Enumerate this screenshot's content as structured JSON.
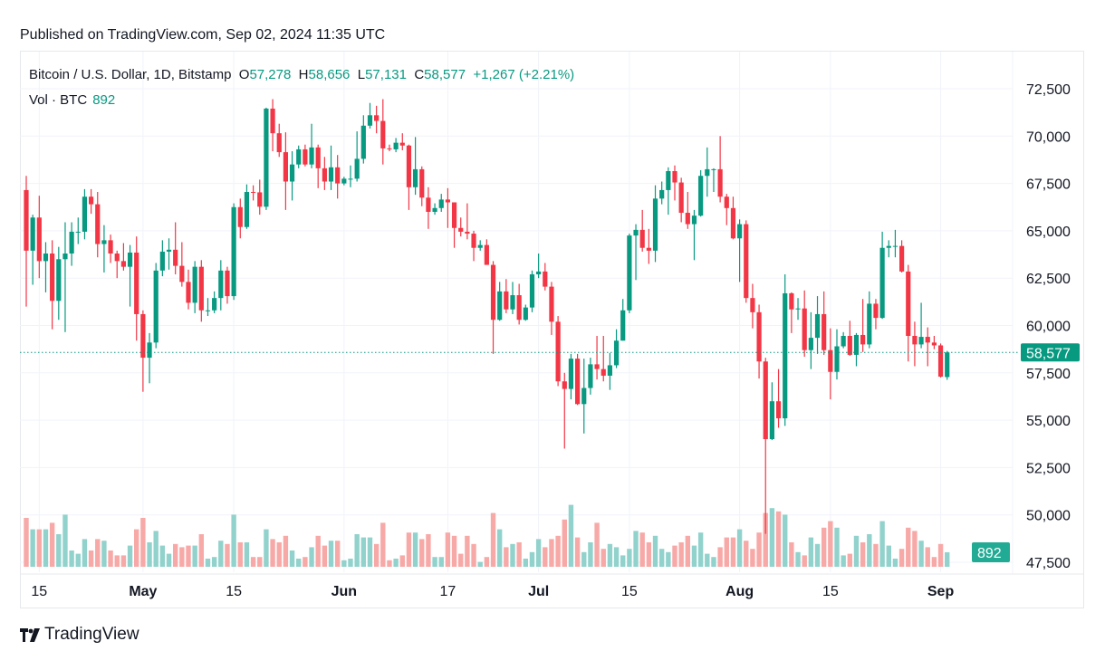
{
  "header": {
    "published": "Published on TradingView.com, Sep 02, 2024 11:35 UTC"
  },
  "legend": {
    "symbol": "Bitcoin / U.S. Dollar, 1D, Bitstamp",
    "o_label": "O",
    "o": "57,278",
    "h_label": "H",
    "h": "58,656",
    "l_label": "L",
    "l": "57,131",
    "c_label": "C",
    "c": "58,577",
    "change": "+1,267 (+2.21%)",
    "vol_label": "Vol · BTC",
    "vol": "892"
  },
  "footer": {
    "brand": "TradingView"
  },
  "colors": {
    "up": "#089981",
    "down": "#f23645",
    "vol_up": "#92d2cc",
    "vol_down": "#f7a9a7",
    "last_price": "#089981",
    "vol_badge": "#22ab94"
  },
  "chart_data": {
    "type": "candlestick",
    "title": "Bitcoin / U.S. Dollar, 1D, Bitstamp",
    "ylim": [
      47500,
      72500
    ],
    "y_ticks": [
      "72,500",
      "70,000",
      "67,500",
      "65,000",
      "62,500",
      "60,000",
      "57,500",
      "55,000",
      "52,500",
      "50,000",
      "47,500"
    ],
    "y_tick_values": [
      72500,
      70000,
      67500,
      65000,
      62500,
      60000,
      57500,
      55000,
      52500,
      50000,
      47500
    ],
    "x_ticks": [
      {
        "date": "2024-04-15",
        "label": "15",
        "month": false
      },
      {
        "date": "2024-05-01",
        "label": "May",
        "month": true
      },
      {
        "date": "2024-05-15",
        "label": "15",
        "month": false
      },
      {
        "date": "2024-06-01",
        "label": "Jun",
        "month": true
      },
      {
        "date": "2024-06-17",
        "label": "17",
        "month": false
      },
      {
        "date": "2024-07-01",
        "label": "Jul",
        "month": true
      },
      {
        "date": "2024-07-15",
        "label": "15",
        "month": false
      },
      {
        "date": "2024-08-01",
        "label": "Aug",
        "month": true
      },
      {
        "date": "2024-08-15",
        "label": "15",
        "month": false
      },
      {
        "date": "2024-09-01",
        "label": "Sep",
        "month": true
      }
    ],
    "last_price": 58577,
    "last_price_label": "58,577",
    "last_volume": 892,
    "last_volume_label": "892",
    "grid": true,
    "columns": [
      "date",
      "open",
      "high",
      "low",
      "close",
      "volume"
    ],
    "candles": [
      [
        "2024-04-13",
        67150,
        67900,
        61000,
        63950,
        3000
      ],
      [
        "2024-04-14",
        63950,
        65850,
        62150,
        65700,
        2300
      ],
      [
        "2024-04-15",
        65700,
        66850,
        62500,
        63400,
        2300
      ],
      [
        "2024-04-16",
        63400,
        64400,
        61750,
        63800,
        2300
      ],
      [
        "2024-04-17",
        63800,
        64500,
        59800,
        61300,
        2700
      ],
      [
        "2024-04-18",
        61300,
        64150,
        60300,
        63500,
        2000
      ],
      [
        "2024-04-19",
        63500,
        65450,
        59650,
        63800,
        3200
      ],
      [
        "2024-04-20",
        63800,
        65450,
        63150,
        64950,
        1000
      ],
      [
        "2024-04-21",
        64950,
        65700,
        64300,
        64950,
        800
      ],
      [
        "2024-04-22",
        64950,
        67200,
        64550,
        66800,
        1700
      ],
      [
        "2024-04-23",
        66800,
        67200,
        65900,
        66400,
        1000
      ],
      [
        "2024-04-24",
        66400,
        67050,
        63600,
        64300,
        1700
      ],
      [
        "2024-04-25",
        64300,
        65300,
        62800,
        64500,
        1600
      ],
      [
        "2024-04-26",
        64500,
        64800,
        63300,
        63800,
        1000
      ],
      [
        "2024-04-27",
        63800,
        63950,
        62500,
        63400,
        700
      ],
      [
        "2024-04-28",
        63400,
        64350,
        62900,
        63100,
        700
      ],
      [
        "2024-04-29",
        63100,
        64250,
        61000,
        63850,
        1300
      ],
      [
        "2024-04-30",
        63850,
        64700,
        59200,
        60600,
        2300
      ],
      [
        "2024-05-01",
        60600,
        60800,
        56500,
        58300,
        3000
      ],
      [
        "2024-05-02",
        58300,
        59600,
        56950,
        59100,
        1500
      ],
      [
        "2024-05-03",
        59100,
        63300,
        58800,
        62900,
        2200
      ],
      [
        "2024-05-04",
        62900,
        64500,
        62600,
        63900,
        1300
      ],
      [
        "2024-05-05",
        63900,
        64600,
        62950,
        64000,
        800
      ],
      [
        "2024-05-06",
        64000,
        65450,
        62700,
        63150,
        1400
      ],
      [
        "2024-05-07",
        63150,
        64400,
        62050,
        62300,
        1200
      ],
      [
        "2024-05-08",
        62300,
        62950,
        60850,
        61200,
        1300
      ],
      [
        "2024-05-09",
        61200,
        63400,
        60650,
        63100,
        1300
      ],
      [
        "2024-05-10",
        63100,
        63450,
        60200,
        60800,
        2000
      ],
      [
        "2024-05-11",
        60800,
        61450,
        60500,
        60800,
        500
      ],
      [
        "2024-05-12",
        60800,
        61800,
        60650,
        61450,
        600
      ],
      [
        "2024-05-13",
        61450,
        63450,
        60800,
        62900,
        1600
      ],
      [
        "2024-05-14",
        62900,
        63100,
        61150,
        61550,
        1400
      ],
      [
        "2024-05-15",
        61550,
        66450,
        61350,
        66250,
        3200
      ],
      [
        "2024-05-16",
        66250,
        66700,
        64600,
        65200,
        1500
      ],
      [
        "2024-05-17",
        65200,
        67450,
        65100,
        67050,
        1500
      ],
      [
        "2024-05-18",
        67050,
        67400,
        66600,
        67030,
        600
      ],
      [
        "2024-05-19",
        67030,
        67700,
        65850,
        66270,
        600
      ],
      [
        "2024-05-20",
        66270,
        71500,
        66100,
        71450,
        2300
      ],
      [
        "2024-05-21",
        71450,
        71950,
        69200,
        70150,
        1700
      ],
      [
        "2024-05-22",
        70150,
        70650,
        68900,
        69150,
        1500
      ],
      [
        "2024-05-23",
        69150,
        70200,
        66100,
        67600,
        1900
      ],
      [
        "2024-05-24",
        67600,
        69200,
        66600,
        68500,
        1000
      ],
      [
        "2024-05-25",
        68500,
        69500,
        68300,
        69300,
        500
      ],
      [
        "2024-05-26",
        69300,
        69550,
        68400,
        68500,
        600
      ],
      [
        "2024-05-27",
        68500,
        70650,
        68300,
        69400,
        1200
      ],
      [
        "2024-05-28",
        69400,
        69550,
        67250,
        68300,
        1900
      ],
      [
        "2024-05-29",
        68300,
        68900,
        67150,
        67600,
        1300
      ],
      [
        "2024-05-30",
        67600,
        69500,
        67150,
        68350,
        1600
      ],
      [
        "2024-05-31",
        68350,
        69000,
        66700,
        67500,
        1600
      ],
      [
        "2024-06-01",
        67500,
        67850,
        67400,
        67750,
        400
      ],
      [
        "2024-06-02",
        67750,
        68450,
        67300,
        67750,
        500
      ],
      [
        "2024-06-03",
        67750,
        70250,
        67600,
        68800,
        2000
      ],
      [
        "2024-06-04",
        68800,
        71100,
        68550,
        70550,
        1800
      ],
      [
        "2024-06-05",
        70550,
        71750,
        70400,
        71100,
        1800
      ],
      [
        "2024-06-06",
        71100,
        71600,
        70150,
        70800,
        1400
      ],
      [
        "2024-06-07",
        70800,
        71950,
        68500,
        69350,
        2700
      ],
      [
        "2024-06-08",
        69350,
        69550,
        69200,
        69300,
        400
      ],
      [
        "2024-06-09",
        69300,
        69900,
        69150,
        69650,
        500
      ],
      [
        "2024-06-10",
        69650,
        70150,
        69250,
        69500,
        700
      ],
      [
        "2024-06-11",
        69500,
        69550,
        66100,
        67300,
        2100
      ],
      [
        "2024-06-12",
        67300,
        69950,
        66900,
        68250,
        2100
      ],
      [
        "2024-06-13",
        68250,
        68400,
        66300,
        66750,
        1700
      ],
      [
        "2024-06-14",
        66750,
        67300,
        65100,
        66000,
        2000
      ],
      [
        "2024-06-15",
        66000,
        66450,
        65850,
        66200,
        600
      ],
      [
        "2024-06-16",
        66200,
        66950,
        66000,
        66650,
        600
      ],
      [
        "2024-06-17",
        66650,
        67250,
        65150,
        66500,
        2100
      ],
      [
        "2024-06-18",
        66500,
        66500,
        64100,
        65150,
        1900
      ],
      [
        "2024-06-19",
        65150,
        65700,
        64700,
        64950,
        800
      ],
      [
        "2024-06-20",
        64950,
        66450,
        64550,
        64850,
        1900
      ],
      [
        "2024-06-21",
        64850,
        65000,
        63400,
        64100,
        1400
      ],
      [
        "2024-06-22",
        64100,
        64500,
        63950,
        64250,
        300
      ],
      [
        "2024-06-23",
        64250,
        64550,
        63200,
        63200,
        600
      ],
      [
        "2024-06-24",
        63200,
        63400,
        58500,
        60300,
        3300
      ],
      [
        "2024-06-25",
        60300,
        62300,
        60250,
        61800,
        2300
      ],
      [
        "2024-06-26",
        61800,
        62450,
        60650,
        60850,
        1200
      ],
      [
        "2024-06-27",
        60850,
        62300,
        60600,
        61600,
        1400
      ],
      [
        "2024-06-28",
        61600,
        62200,
        60050,
        60300,
        1500
      ],
      [
        "2024-06-29",
        60300,
        61100,
        60250,
        60950,
        500
      ],
      [
        "2024-06-30",
        60950,
        62900,
        60700,
        62700,
        900
      ],
      [
        "2024-07-01",
        62700,
        63800,
        62500,
        62850,
        1700
      ],
      [
        "2024-07-02",
        62850,
        63300,
        61850,
        62050,
        1200
      ],
      [
        "2024-07-03",
        62050,
        62300,
        59500,
        60200,
        1700
      ],
      [
        "2024-07-04",
        60200,
        60500,
        56800,
        57050,
        1900
      ],
      [
        "2024-07-05",
        57050,
        57500,
        53500,
        56650,
        2900
      ],
      [
        "2024-07-06",
        56650,
        58500,
        56100,
        58250,
        3800
      ],
      [
        "2024-07-07",
        58250,
        58500,
        55800,
        55850,
        1800
      ],
      [
        "2024-07-08",
        55850,
        58250,
        54300,
        56700,
        900
      ],
      [
        "2024-07-09",
        56700,
        58300,
        56350,
        57950,
        1500
      ],
      [
        "2024-07-10",
        57950,
        59450,
        57150,
        57700,
        2700
      ],
      [
        "2024-07-11",
        57700,
        59450,
        57050,
        57350,
        1100
      ],
      [
        "2024-07-12",
        57350,
        58550,
        56600,
        57900,
        1400
      ],
      [
        "2024-07-13",
        57900,
        59800,
        57750,
        59200,
        1200
      ],
      [
        "2024-07-14",
        59200,
        61400,
        59200,
        60800,
        700
      ],
      [
        "2024-07-15",
        60800,
        64850,
        60650,
        64750,
        1100
      ],
      [
        "2024-07-16",
        64750,
        65350,
        62400,
        65050,
        2200
      ],
      [
        "2024-07-17",
        65050,
        66100,
        63900,
        64100,
        2100
      ],
      [
        "2024-07-18",
        64100,
        65100,
        63250,
        63950,
        1500
      ],
      [
        "2024-07-19",
        63950,
        67400,
        63350,
        66700,
        1900
      ],
      [
        "2024-07-20",
        66700,
        67600,
        66400,
        67150,
        1100
      ],
      [
        "2024-07-21",
        67150,
        68350,
        65850,
        68150,
        900
      ],
      [
        "2024-07-22",
        68150,
        68450,
        66600,
        67550,
        1300
      ],
      [
        "2024-07-23",
        67550,
        67800,
        65450,
        65950,
        1500
      ],
      [
        "2024-07-24",
        65950,
        67050,
        65100,
        65350,
        1900
      ],
      [
        "2024-07-25",
        65350,
        66100,
        63450,
        65800,
        1300
      ],
      [
        "2024-07-26",
        65800,
        68200,
        65750,
        67900,
        2100
      ],
      [
        "2024-07-27",
        67900,
        69400,
        66800,
        68250,
        800
      ],
      [
        "2024-07-28",
        68250,
        68300,
        67050,
        68250,
        600
      ],
      [
        "2024-07-29",
        68250,
        70000,
        66500,
        66800,
        1200
      ],
      [
        "2024-07-30",
        66800,
        66950,
        65300,
        66200,
        1800
      ],
      [
        "2024-07-31",
        66200,
        66800,
        64550,
        64600,
        1800
      ],
      [
        "2024-08-01",
        64600,
        65600,
        62300,
        65350,
        2300
      ],
      [
        "2024-08-02",
        65350,
        65550,
        61200,
        61450,
        1600
      ],
      [
        "2024-08-03",
        61450,
        62200,
        59850,
        60700,
        1100
      ],
      [
        "2024-08-04",
        60700,
        61100,
        57200,
        58100,
        2100
      ],
      [
        "2024-08-05",
        58100,
        58300,
        49000,
        54000,
        3300
      ],
      [
        "2024-08-06",
        54000,
        57000,
        53950,
        56000,
        3600
      ],
      [
        "2024-08-07",
        56000,
        57700,
        54600,
        55100,
        3400
      ],
      [
        "2024-08-08",
        55100,
        62700,
        54700,
        61700,
        3200
      ],
      [
        "2024-08-09",
        61700,
        61750,
        59600,
        60850,
        1500
      ],
      [
        "2024-08-10",
        60850,
        61450,
        60300,
        60900,
        900
      ],
      [
        "2024-08-11",
        60900,
        61850,
        58350,
        58700,
        700
      ],
      [
        "2024-08-12",
        58700,
        60700,
        57700,
        59350,
        1800
      ],
      [
        "2024-08-13",
        59350,
        61550,
        58500,
        60600,
        1400
      ],
      [
        "2024-08-14",
        60600,
        61800,
        58450,
        58700,
        2400
      ],
      [
        "2024-08-15",
        58700,
        59850,
        56100,
        57550,
        2800
      ],
      [
        "2024-08-16",
        57550,
        59800,
        57150,
        58900,
        2400
      ],
      [
        "2024-08-17",
        58900,
        59650,
        58800,
        59450,
        700
      ],
      [
        "2024-08-18",
        59450,
        60250,
        58400,
        58450,
        800
      ],
      [
        "2024-08-19",
        58450,
        59600,
        57850,
        59500,
        1900
      ],
      [
        "2024-08-20",
        59500,
        61400,
        58600,
        59000,
        1500
      ],
      [
        "2024-08-21",
        59000,
        61800,
        58800,
        61150,
        2000
      ],
      [
        "2024-08-22",
        61150,
        61400,
        59800,
        60400,
        1400
      ],
      [
        "2024-08-23",
        60400,
        64950,
        60350,
        64100,
        2800
      ],
      [
        "2024-08-24",
        64100,
        64500,
        63600,
        64200,
        1300
      ],
      [
        "2024-08-25",
        64200,
        65050,
        63600,
        64200,
        500
      ],
      [
        "2024-08-26",
        64200,
        64500,
        62800,
        62850,
        1100
      ],
      [
        "2024-08-27",
        62850,
        63200,
        58100,
        59450,
        2400
      ],
      [
        "2024-08-28",
        59450,
        60200,
        57850,
        59000,
        2200
      ],
      [
        "2024-08-29",
        59000,
        61200,
        58800,
        59400,
        1600
      ],
      [
        "2024-08-30",
        59400,
        59900,
        57850,
        59100,
        1200
      ],
      [
        "2024-08-31",
        59100,
        59450,
        58750,
        58950,
        600
      ],
      [
        "2024-09-01",
        58950,
        59050,
        57250,
        57300,
        1400
      ],
      [
        "2024-09-02",
        57278,
        58656,
        57131,
        58577,
        892
      ]
    ]
  }
}
